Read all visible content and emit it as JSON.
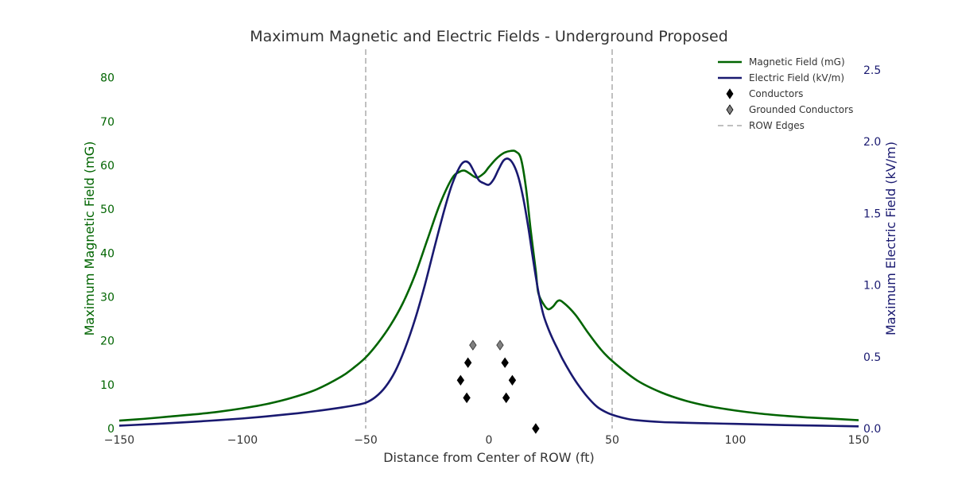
{
  "chart_data": {
    "type": "line",
    "title": "Maximum Magnetic and Electric Fields - Underground Proposed",
    "xlabel": "Distance from Center of ROW (ft)",
    "ylabel_left": "Maximum Magnetic Field (mG)",
    "ylabel_right": "Maximum Electric Field (kV/m)",
    "xlim": [
      -150,
      150
    ],
    "ylim_left": [
      0,
      85
    ],
    "ylim_right": [
      0,
      2.6
    ],
    "xticks": [
      -150,
      -100,
      -50,
      0,
      50,
      100,
      150
    ],
    "xtick_labels": [
      "−150",
      "−100",
      "−50",
      "0",
      "50",
      "100",
      "150"
    ],
    "yticks_left": [
      0,
      10,
      20,
      30,
      40,
      50,
      60,
      70,
      80
    ],
    "yticks_right": [
      0.0,
      0.5,
      1.0,
      1.5,
      2.0,
      2.5
    ],
    "ytick_labels_right": [
      "0.0",
      "0.5",
      "1.0",
      "1.5",
      "2.0",
      "2.5"
    ],
    "grid": false,
    "legend_position": "top-right",
    "row_edges": [
      -50,
      50
    ],
    "series": [
      {
        "name": "Magnetic Field (mG)",
        "axis": "left",
        "color": "#006400",
        "x": [
          -150,
          -140,
          -130,
          -120,
          -110,
          -100,
          -90,
          -80,
          -70,
          -60,
          -55,
          -50,
          -45,
          -40,
          -35,
          -30,
          -25,
          -20,
          -15,
          -12,
          -10,
          -8,
          -5,
          -2,
          0,
          3,
          6,
          9,
          11,
          13,
          15,
          17,
          19,
          20,
          22,
          24,
          26,
          28,
          30,
          35,
          40,
          45,
          50,
          60,
          70,
          80,
          90,
          100,
          110,
          120,
          130,
          140,
          150
        ],
        "y": [
          1.8,
          2.2,
          2.7,
          3.2,
          3.8,
          4.6,
          5.6,
          7.0,
          8.9,
          11.8,
          13.8,
          16.2,
          19.5,
          23.5,
          28.5,
          35,
          43,
          51,
          57,
          58.5,
          58.8,
          58.2,
          57.2,
          58.2,
          59.6,
          61.5,
          62.8,
          63.3,
          63.1,
          61.5,
          55,
          45,
          36,
          31,
          28.5,
          27.2,
          27.8,
          29.1,
          28.8,
          26,
          22,
          18.3,
          15.4,
          11,
          8.2,
          6.3,
          5.0,
          4.1,
          3.4,
          2.9,
          2.5,
          2.2,
          1.9
        ]
      },
      {
        "name": "Electric Field (kV/m)",
        "axis": "right",
        "color": "#191970",
        "x": [
          -150,
          -140,
          -130,
          -120,
          -110,
          -100,
          -90,
          -80,
          -70,
          -60,
          -55,
          -50,
          -46,
          -42,
          -38,
          -34,
          -30,
          -26,
          -22,
          -18,
          -15,
          -12,
          -10,
          -8,
          -6,
          -4,
          -2,
          0,
          2,
          4,
          6,
          8,
          10,
          12,
          14,
          16,
          18,
          20,
          22,
          24,
          26,
          28,
          30,
          33,
          36,
          40,
          44,
          48,
          52,
          56,
          60,
          70,
          80,
          90,
          100,
          110,
          120,
          130,
          140,
          150
        ],
        "y": [
          0.02,
          0.028,
          0.037,
          0.047,
          0.058,
          0.07,
          0.085,
          0.102,
          0.122,
          0.146,
          0.16,
          0.18,
          0.22,
          0.29,
          0.4,
          0.56,
          0.76,
          1.0,
          1.27,
          1.53,
          1.7,
          1.82,
          1.86,
          1.85,
          1.79,
          1.73,
          1.71,
          1.7,
          1.74,
          1.81,
          1.87,
          1.88,
          1.84,
          1.75,
          1.6,
          1.4,
          1.17,
          0.96,
          0.8,
          0.7,
          0.62,
          0.55,
          0.48,
          0.39,
          0.31,
          0.22,
          0.15,
          0.11,
          0.085,
          0.068,
          0.058,
          0.045,
          0.04,
          0.036,
          0.032,
          0.028,
          0.024,
          0.021,
          0.018,
          0.015
        ]
      }
    ],
    "conductors": {
      "name": "Conductors",
      "color": "#000000",
      "points": [
        [
          -8.5,
          15
        ],
        [
          6.5,
          15
        ],
        [
          -11.5,
          11
        ],
        [
          9.5,
          11
        ],
        [
          -9,
          7
        ],
        [
          7,
          7
        ],
        [
          19,
          0
        ]
      ]
    },
    "grounded_conductors": {
      "name": "Grounded Conductors",
      "color": "#808080",
      "points": [
        [
          -6.5,
          19
        ],
        [
          4.5,
          19
        ]
      ]
    },
    "legend": [
      {
        "label": "Magnetic Field (mG)",
        "kind": "line",
        "color": "#006400"
      },
      {
        "label": "Electric Field (kV/m)",
        "kind": "line",
        "color": "#191970"
      },
      {
        "label": "Conductors",
        "kind": "diamond",
        "color": "#000000"
      },
      {
        "label": "Grounded Conductors",
        "kind": "diamond",
        "color": "#808080"
      },
      {
        "label": "ROW Edges",
        "kind": "dash",
        "color": "#808080"
      }
    ]
  }
}
